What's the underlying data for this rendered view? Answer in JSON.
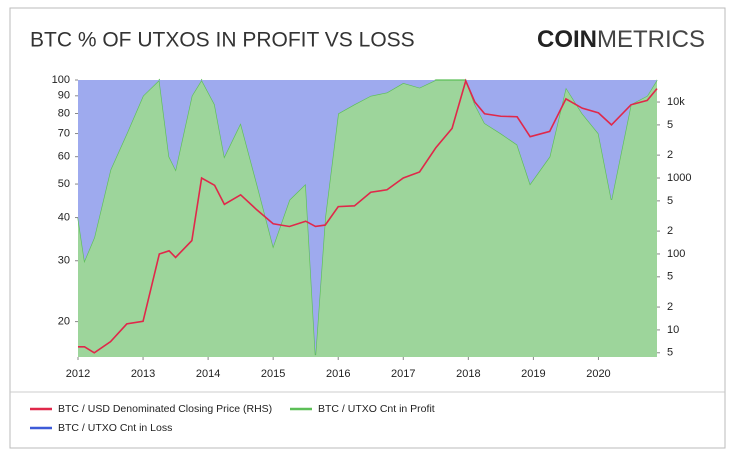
{
  "chart_data": {
    "type": "area",
    "title": "BTC % OF UTXOS IN PROFIT VS LOSS",
    "logo": {
      "bold": "COIN",
      "light": "METRICS"
    },
    "stacked": true,
    "x": [
      2012.0,
      2012.1,
      2012.25,
      2012.5,
      2012.75,
      2013.0,
      2013.25,
      2013.4,
      2013.5,
      2013.75,
      2013.9,
      2014.1,
      2014.25,
      2014.5,
      2014.75,
      2015.0,
      2015.25,
      2015.5,
      2015.65,
      2015.8,
      2016.0,
      2016.25,
      2016.5,
      2016.75,
      2017.0,
      2017.25,
      2017.5,
      2017.75,
      2017.96,
      2018.1,
      2018.25,
      2018.5,
      2018.75,
      2018.95,
      2019.25,
      2019.5,
      2019.75,
      2020.0,
      2020.2,
      2020.5,
      2020.75,
      2020.9
    ],
    "series": [
      {
        "name": "BTC / USD Denominated Closing Price (RHS)",
        "color": "#e0284a",
        "axis": "y2",
        "values": [
          6,
          6,
          5,
          7,
          12,
          13,
          100,
          110,
          90,
          150,
          1000,
          800,
          450,
          600,
          380,
          250,
          230,
          270,
          230,
          240,
          420,
          430,
          650,
          700,
          1000,
          1200,
          2500,
          4500,
          19000,
          10000,
          7000,
          6500,
          6400,
          3500,
          4100,
          11000,
          8300,
          7200,
          5000,
          9200,
          10500,
          15000
        ]
      },
      {
        "name": "BTC / UTXO Cnt in Profit",
        "color": "#5cbf57",
        "values": [
          40,
          30,
          35,
          55,
          70,
          90,
          100,
          60,
          55,
          90,
          100,
          85,
          60,
          75,
          50,
          33,
          45,
          50,
          16,
          40,
          80,
          85,
          90,
          92,
          98,
          95,
          100,
          100,
          100,
          85,
          75,
          70,
          65,
          50,
          60,
          95,
          80,
          70,
          45,
          85,
          90,
          100
        ]
      },
      {
        "name": "BTC / UTXO Cnt in Loss",
        "color": "#3d5bd8",
        "values": [
          60,
          70,
          65,
          45,
          30,
          10,
          0,
          40,
          45,
          10,
          0,
          15,
          40,
          25,
          50,
          67,
          55,
          50,
          84,
          60,
          20,
          15,
          10,
          8,
          2,
          5,
          0,
          0,
          0,
          15,
          25,
          30,
          35,
          50,
          40,
          5,
          20,
          30,
          55,
          15,
          10,
          0
        ]
      }
    ],
    "xlim": [
      2012.0,
      2020.9
    ],
    "xticks": [
      2012,
      2013,
      2014,
      2015,
      2016,
      2017,
      2018,
      2019,
      2020
    ],
    "ylim": [
      15.8,
      100
    ],
    "yticks": [
      20,
      30,
      40,
      50,
      60,
      70,
      80,
      90,
      100
    ],
    "y2lim": [
      4.4,
      19500
    ],
    "y2ticks": [
      5,
      10,
      {
        "value": 20,
        "label": "2"
      },
      {
        "value": 50,
        "label": "5"
      },
      100,
      {
        "value": 200,
        "label": "2"
      },
      {
        "value": 500,
        "label": "5"
      },
      1000,
      {
        "value": 2000,
        "label": "2"
      },
      {
        "value": 5000,
        "label": "5"
      },
      {
        "value": 10000,
        "label": "10k"
      }
    ],
    "log_y": true,
    "log_y2": true,
    "grid": false
  }
}
